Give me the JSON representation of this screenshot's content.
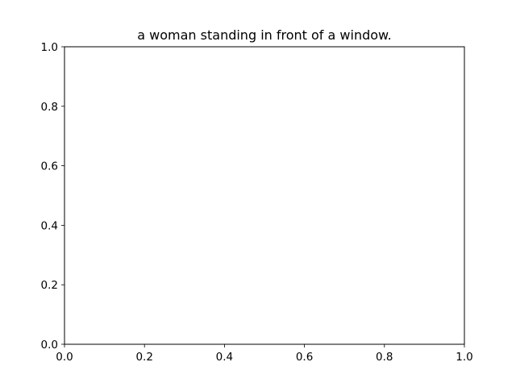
{
  "chart_data": {
    "type": "scatter",
    "title": "a woman standing in front of a window.",
    "xlabel": "",
    "ylabel": "",
    "xlim": [
      0,
      1
    ],
    "ylim": [
      0,
      1
    ],
    "x_ticks": [
      "0.0",
      "0.2",
      "0.4",
      "0.6",
      "0.8",
      "1.0"
    ],
    "y_ticks": [
      "0.0",
      "0.2",
      "0.4",
      "0.6",
      "0.8",
      "1.0"
    ],
    "series": [],
    "grid": false,
    "legend": "none"
  }
}
